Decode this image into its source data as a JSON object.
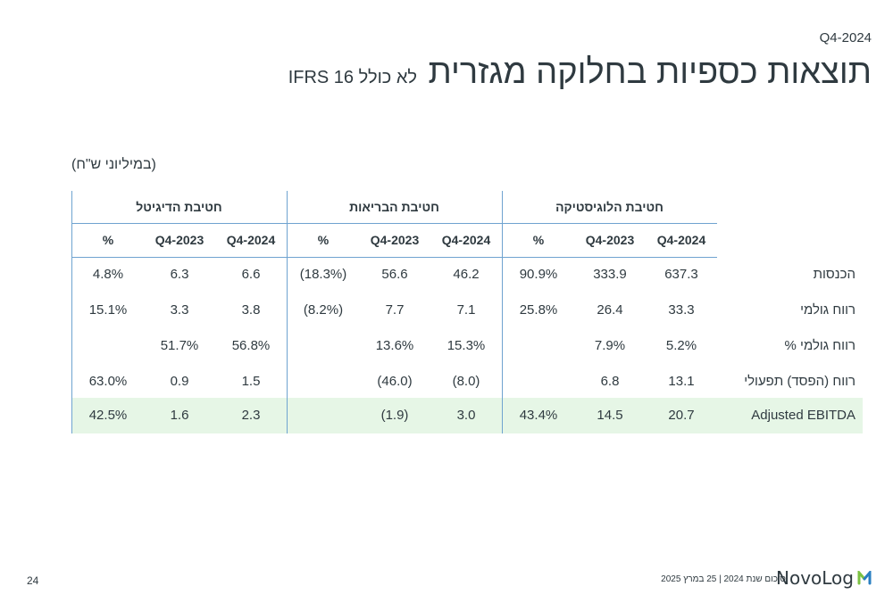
{
  "header": {
    "period": "Q4-2024",
    "title": "תוצאות כספיות בחלוקה מגזרית",
    "subtitle": "לא כולל IFRS 16"
  },
  "units_note": "(במיליוני ש\"ח)",
  "segments": [
    {
      "name": "חטיבת הלוגיסטיקה",
      "cols": [
        "Q4-2024",
        "Q4-2023",
        "%"
      ]
    },
    {
      "name": "חטיבת הבריאות",
      "cols": [
        "Q4-2024",
        "Q4-2023",
        "%"
      ]
    },
    {
      "name": "חטיבת הדיגיטל",
      "cols": [
        "Q4-2024",
        "Q4-2023",
        "%"
      ]
    }
  ],
  "rows": [
    {
      "label": "הכנסות",
      "values": [
        [
          "637.3",
          "333.9",
          "90.9%"
        ],
        [
          "46.2",
          "56.6",
          "(18.3%)"
        ],
        [
          "6.6",
          "6.3",
          "4.8%"
        ]
      ]
    },
    {
      "label": "רווח גולמי",
      "values": [
        [
          "33.3",
          "26.4",
          "25.8%"
        ],
        [
          "7.1",
          "7.7",
          "(8.2%)"
        ],
        [
          "3.8",
          "3.3",
          "15.1%"
        ]
      ]
    },
    {
      "label": "רווח גולמי %",
      "values": [
        [
          "5.2%",
          "7.9%",
          ""
        ],
        [
          "15.3%",
          "13.6%",
          ""
        ],
        [
          "56.8%",
          "51.7%",
          ""
        ]
      ]
    },
    {
      "label": "רווח (הפסד) תפעולי",
      "values": [
        [
          "13.1",
          "6.8",
          ""
        ],
        [
          "(8.0)",
          "(46.0)",
          ""
        ],
        [
          "1.5",
          "0.9",
          "63.0%"
        ]
      ]
    },
    {
      "label": "Adjusted EBITDA",
      "values": [
        [
          "20.7",
          "14.5",
          "43.4%"
        ],
        [
          "3.0",
          "(1.9)",
          ""
        ],
        [
          "2.3",
          "1.6",
          "42.5%"
        ]
      ]
    }
  ],
  "footer": {
    "page_number": "24",
    "text": "סיכום שנת 2024 | 25 במרץ 2025",
    "logo_word": "NovoLog",
    "logo_icon": "novolog-logo-icon"
  },
  "colors": {
    "text": "#2f3a40",
    "grid_line": "#6fa3d0",
    "ebitda_highlight": "#e6f6e6",
    "logo_green": "#7cc242",
    "logo_blue": "#2a7fc1"
  }
}
